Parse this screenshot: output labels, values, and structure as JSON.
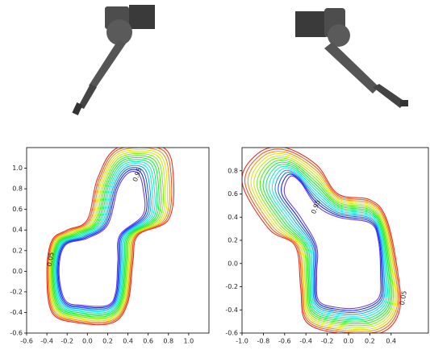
{
  "chart_data": [
    {
      "type": "contour",
      "xlim": [
        -0.6,
        1.2
      ],
      "xticks": [
        -0.6,
        -0.4,
        -0.2,
        {
          "value": 0,
          "label": "0.0"
        },
        0.2,
        0.4,
        0.6,
        0.8,
        {
          "value": 1,
          "label": "1.0"
        }
      ],
      "ylim": [
        -0.6,
        1.2
      ],
      "yticks": [
        -0.6,
        -0.4,
        -0.2,
        {
          "value": 0,
          "label": "0.0"
        },
        0.2,
        0.4,
        0.6,
        0.8,
        {
          "value": 1,
          "label": "1.0"
        }
      ],
      "levels": [
        0.05,
        0.95
      ],
      "colors": [
        "#e8312a",
        "#6a3df0"
      ]
    },
    {
      "type": "contour",
      "xlim": [
        -1.0,
        0.75
      ],
      "xticks": [
        {
          "value": -1,
          "label": "-1.0"
        },
        -0.8,
        -0.6,
        -0.4,
        -0.2,
        {
          "value": 0,
          "label": "0.0"
        },
        0.2,
        0.4
      ],
      "ylim": [
        -0.6,
        1.0
      ],
      "yticks": [
        -0.6,
        -0.4,
        -0.2,
        {
          "value": 0,
          "label": "0.0"
        },
        0.2,
        0.4,
        0.6,
        0.8
      ],
      "levels": [
        0.05,
        0.95
      ],
      "colors": [
        "#e8312a",
        "#6a3df0"
      ]
    }
  ]
}
